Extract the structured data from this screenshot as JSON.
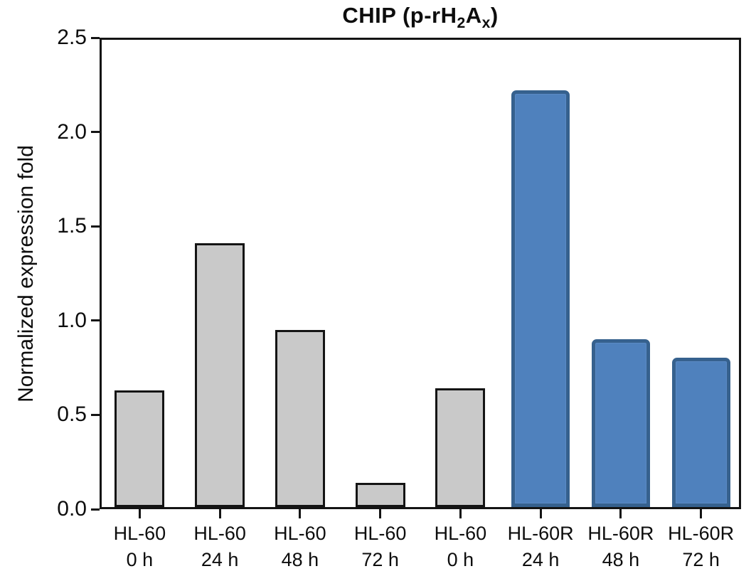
{
  "figure": {
    "title_plain": "CHIP (p-rH2Ax)",
    "title_segments": [
      {
        "text": "CHIP (p-rH",
        "sub": false
      },
      {
        "text": "2",
        "sub": true
      },
      {
        "text": "A",
        "sub": false
      },
      {
        "text": "x",
        "sub": true
      },
      {
        "text": ")",
        "sub": false
      }
    ]
  },
  "chart_data": {
    "type": "bar",
    "title": "CHIP (p-rH2Ax)",
    "xlabel": "",
    "ylabel": "Normalized expression fold",
    "ylim": [
      0,
      2.5
    ],
    "ytick_labels": [
      "0.0",
      "0.5",
      "1.0",
      "1.5",
      "2.0",
      "2.5"
    ],
    "yticks": [
      0.0,
      0.5,
      1.0,
      1.5,
      2.0,
      2.5
    ],
    "grid": false,
    "legend": false,
    "categories": [
      {
        "line1": "HL-60",
        "line2": "0 h"
      },
      {
        "line1": "HL-60",
        "line2": "24 h"
      },
      {
        "line1": "HL-60",
        "line2": "48 h"
      },
      {
        "line1": "HL-60",
        "line2": "72 h"
      },
      {
        "line1": "HL-60",
        "line2": "0 h"
      },
      {
        "line1": "HL-60R",
        "line2": "24 h"
      },
      {
        "line1": "HL-60R",
        "line2": "48 h"
      },
      {
        "line1": "HL-60R",
        "line2": "72 h"
      }
    ],
    "values": [
      0.62,
      1.4,
      0.94,
      0.13,
      0.63,
      2.21,
      0.89,
      0.79
    ],
    "bar_style": [
      "gray",
      "gray",
      "gray",
      "gray",
      "gray",
      "blue",
      "blue",
      "blue"
    ],
    "series": [
      {
        "name": "HL-60",
        "style": "gray",
        "values": [
          0.62,
          1.4,
          0.94,
          0.13,
          0.63
        ],
        "indices": [
          0,
          1,
          2,
          3,
          4
        ]
      },
      {
        "name": "HL-60R",
        "style": "blue",
        "values": [
          2.21,
          0.89,
          0.79
        ],
        "indices": [
          5,
          6,
          7
        ]
      }
    ]
  },
  "colors": {
    "background": "#ffffff",
    "text": "#0d0d0d",
    "axis": "#141414",
    "gray_fill": "#c9c9c9",
    "gray_border": "#141414",
    "blue_fill": "#4f81bd",
    "blue_border": "#36618e"
  }
}
